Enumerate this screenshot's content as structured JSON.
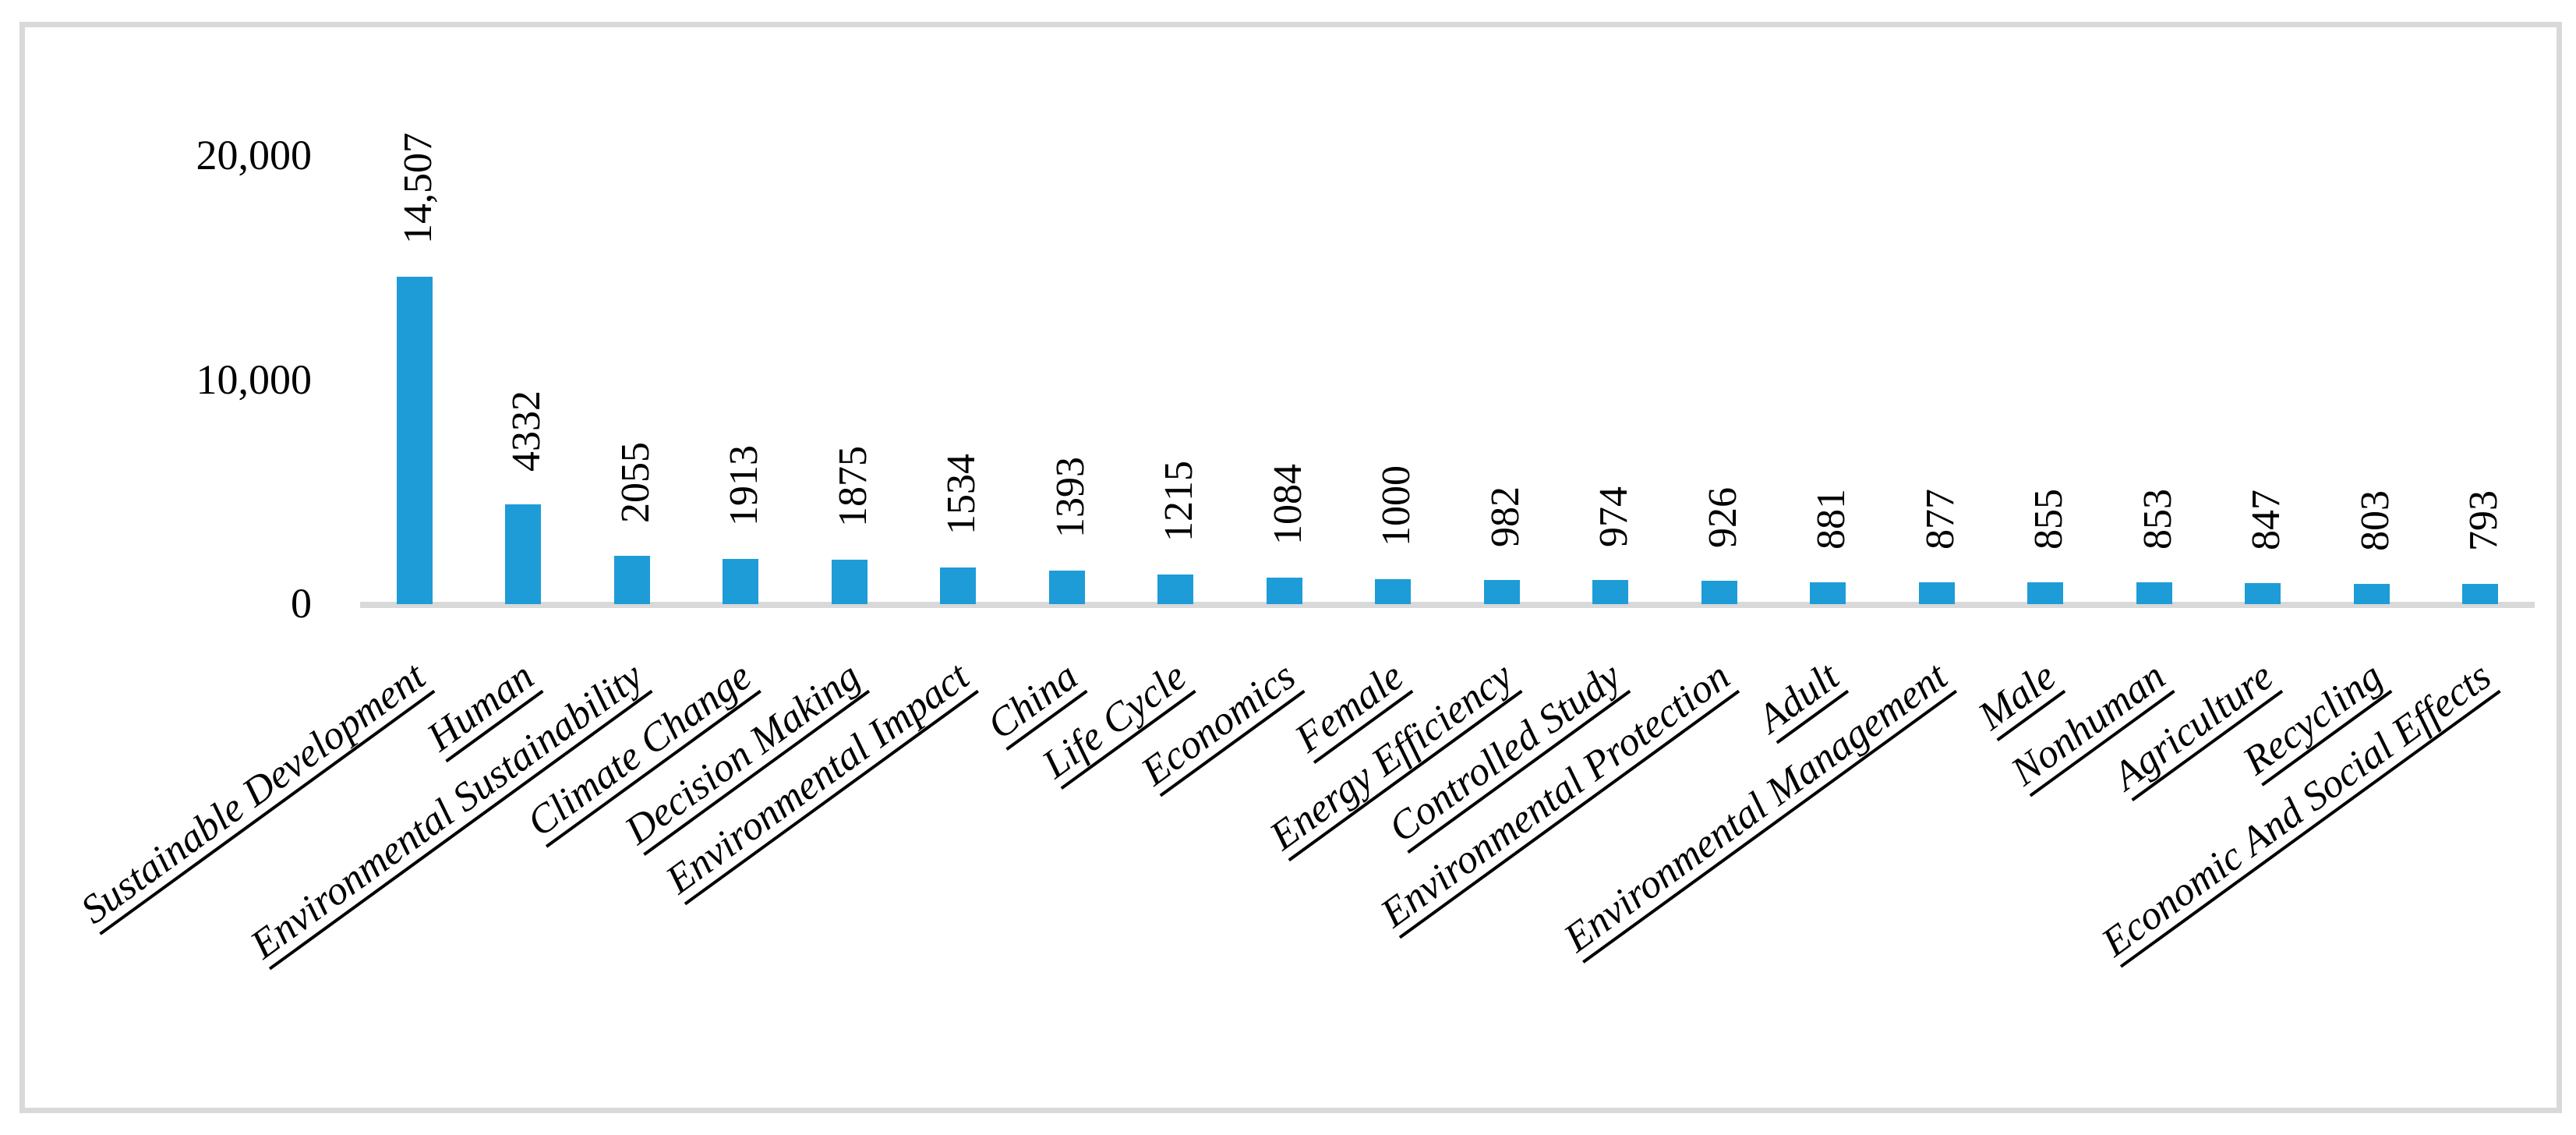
{
  "figure": {
    "background_color": "#FFFFFF",
    "frame_border_color": "#D9D9D9"
  },
  "chart_data": {
    "type": "bar",
    "title": "",
    "xlabel": "",
    "ylabel": "",
    "grid": false,
    "legend": false,
    "bar_color": "#1E9CD7",
    "axis_line_color": "#D9D9D9",
    "text_color": "#000000",
    "ylim": [
      0,
      20000
    ],
    "yticks": [
      {
        "label": "0",
        "value": 0
      },
      {
        "label": "10,000",
        "value": 10000
      },
      {
        "label": "20,000",
        "value": 20000
      }
    ],
    "categories": [
      "Sustainable Development",
      "Human",
      "Environmental Sustainability",
      "Climate Change",
      "Decision Making",
      "Environmental Impact",
      "China",
      "Life Cycle",
      "Economics",
      "Female",
      "Energy Efficiency",
      "Controlled Study",
      "Environmental Protection",
      "Adult",
      "Environmental Management",
      "Male",
      "Nonhuman",
      "Agriculture",
      "Recycling",
      "Economic And Social Effects"
    ],
    "values": [
      14507,
      4332,
      2055,
      1913,
      1875,
      1534,
      1393,
      1215,
      1084,
      1000,
      982,
      974,
      926,
      881,
      877,
      855,
      853,
      847,
      803,
      793
    ],
    "value_labels": [
      "14,507",
      "4332",
      "2055",
      "1913",
      "1875",
      "1534",
      "1393",
      "1215",
      "1084",
      "1000",
      "982",
      "974",
      "926",
      "881",
      "877",
      "855",
      "853",
      "847",
      "803",
      "793"
    ],
    "category_label_rotation_deg": -36,
    "value_label_rotation_deg": -90,
    "category_label_style": "italic-underlined"
  }
}
